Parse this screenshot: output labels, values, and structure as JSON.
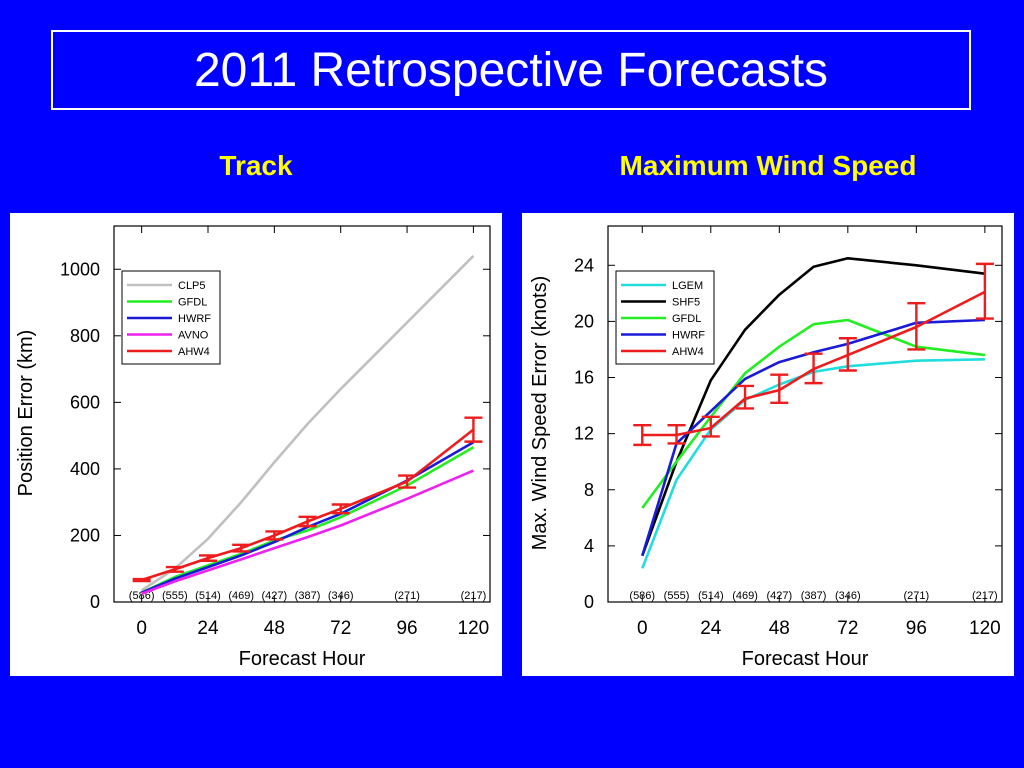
{
  "page": {
    "title": "2011 Retrospective Forecasts",
    "subtitle_track": "Track",
    "subtitle_wind": "Maximum Wind Speed"
  },
  "colors": {
    "background": "#0000ff",
    "subtitle": "#ffff00",
    "CLP5": "#c0c0c0",
    "GFDL": "#22ee22",
    "HWRF": "#1a1ad8",
    "AVNO": "#ee22ee",
    "AHW4": "#ee1c1c",
    "LGEM": "#22dddd",
    "SHF5": "#000000"
  },
  "chart_data": [
    {
      "id": "track",
      "type": "line",
      "xlabel": "Forecast Hour",
      "ylabel": "Position Error (km)",
      "xlim": [
        -10,
        126
      ],
      "ylim": [
        0,
        1130
      ],
      "xticks": [
        0,
        24,
        48,
        72,
        96,
        120
      ],
      "yticks": [
        0,
        200,
        400,
        600,
        800,
        1000
      ],
      "legend_position": "top-left",
      "sample_counts": [
        {
          "x": 0,
          "label": "(586)"
        },
        {
          "x": 12,
          "label": "(555)"
        },
        {
          "x": 24,
          "label": "(514)"
        },
        {
          "x": 36,
          "label": "(469)"
        },
        {
          "x": 48,
          "label": "(427)"
        },
        {
          "x": 60,
          "label": "(387)"
        },
        {
          "x": 72,
          "label": "(346)"
        },
        {
          "x": 96,
          "label": "(271)"
        },
        {
          "x": 120,
          "label": "(217)"
        }
      ],
      "series": [
        {
          "name": "CLP5",
          "color_key": "CLP5",
          "x": [
            0,
            12,
            24,
            36,
            48,
            60,
            72,
            96,
            120
          ],
          "values": [
            35,
            100,
            190,
            300,
            420,
            535,
            640,
            840,
            1040
          ]
        },
        {
          "name": "GFDL",
          "color_key": "GFDL",
          "x": [
            0,
            12,
            24,
            36,
            48,
            60,
            72,
            96,
            120
          ],
          "values": [
            28,
            75,
            110,
            145,
            185,
            215,
            255,
            350,
            465
          ]
        },
        {
          "name": "HWRF",
          "color_key": "HWRF",
          "x": [
            0,
            12,
            24,
            36,
            48,
            60,
            72,
            96,
            120
          ],
          "values": [
            28,
            70,
            105,
            140,
            180,
            225,
            265,
            365,
            480
          ]
        },
        {
          "name": "AVNO",
          "color_key": "AVNO",
          "x": [
            0,
            12,
            24,
            36,
            48,
            60,
            72,
            96,
            120
          ],
          "values": [
            25,
            62,
            95,
            128,
            162,
            195,
            230,
            310,
            395
          ]
        },
        {
          "name": "AHW4",
          "color_key": "AHW4",
          "x": [
            0,
            12,
            24,
            36,
            48,
            60,
            72,
            96,
            120
          ],
          "values": [
            66,
            98,
            132,
            162,
            200,
            242,
            280,
            362,
            518
          ],
          "error": [
            [
              63,
              69
            ],
            [
              91,
              105
            ],
            [
              124,
              140
            ],
            [
              152,
              172
            ],
            [
              188,
              212
            ],
            [
              228,
              256
            ],
            [
              267,
              293
            ],
            [
              344,
              380
            ],
            [
              482,
              554
            ]
          ]
        }
      ]
    },
    {
      "id": "wind",
      "type": "line",
      "xlabel": "Forecast Hour",
      "ylabel": "Max. Wind Speed Error (knots)",
      "xlim": [
        -12,
        126
      ],
      "ylim": [
        0,
        26.8
      ],
      "xticks": [
        0,
        24,
        48,
        72,
        96,
        120
      ],
      "yticks": [
        0,
        4,
        8,
        12,
        16,
        20,
        24
      ],
      "legend_position": "top-left",
      "sample_counts": [
        {
          "x": 0,
          "label": "(586)"
        },
        {
          "x": 12,
          "label": "(555)"
        },
        {
          "x": 24,
          "label": "(514)"
        },
        {
          "x": 36,
          "label": "(469)"
        },
        {
          "x": 48,
          "label": "(427)"
        },
        {
          "x": 60,
          "label": "(387)"
        },
        {
          "x": 72,
          "label": "(346)"
        },
        {
          "x": 96,
          "label": "(271)"
        },
        {
          "x": 120,
          "label": "(217)"
        }
      ],
      "series": [
        {
          "name": "LGEM",
          "color_key": "LGEM",
          "x": [
            0,
            12,
            24,
            36,
            48,
            60,
            72,
            96,
            120
          ],
          "values": [
            2.4,
            8.7,
            12.3,
            14.4,
            15.5,
            16.4,
            16.8,
            17.2,
            17.3
          ]
        },
        {
          "name": "SHF5",
          "color_key": "SHF5",
          "x": [
            0,
            12,
            24,
            36,
            48,
            60,
            72,
            96,
            120
          ],
          "values": [
            3.3,
            10.0,
            15.8,
            19.4,
            21.9,
            23.9,
            24.5,
            24.0,
            23.4
          ]
        },
        {
          "name": "GFDL",
          "color_key": "GFDL",
          "x": [
            0,
            12,
            24,
            36,
            48,
            60,
            72,
            96,
            120
          ],
          "values": [
            6.7,
            10.0,
            13.2,
            16.3,
            18.2,
            19.8,
            20.1,
            18.2,
            17.6
          ]
        },
        {
          "name": "HWRF",
          "color_key": "HWRF",
          "x": [
            0,
            12,
            24,
            36,
            48,
            60,
            72,
            96,
            120
          ],
          "values": [
            3.3,
            11.3,
            13.6,
            15.9,
            17.1,
            17.8,
            18.4,
            19.9,
            20.1
          ]
        },
        {
          "name": "AHW4",
          "color_key": "AHW4",
          "x": [
            0,
            12,
            24,
            36,
            48,
            60,
            72,
            96,
            120
          ],
          "values": [
            11.9,
            11.9,
            12.4,
            14.5,
            15.1,
            16.6,
            17.6,
            19.6,
            22.1
          ],
          "error": [
            [
              11.2,
              12.6
            ],
            [
              11.3,
              12.6
            ],
            [
              11.8,
              13.2
            ],
            [
              13.8,
              15.4
            ],
            [
              14.2,
              16.2
            ],
            [
              15.6,
              17.7
            ],
            [
              16.5,
              18.8
            ],
            [
              18.0,
              21.3
            ],
            [
              20.2,
              24.1
            ]
          ]
        }
      ]
    }
  ]
}
